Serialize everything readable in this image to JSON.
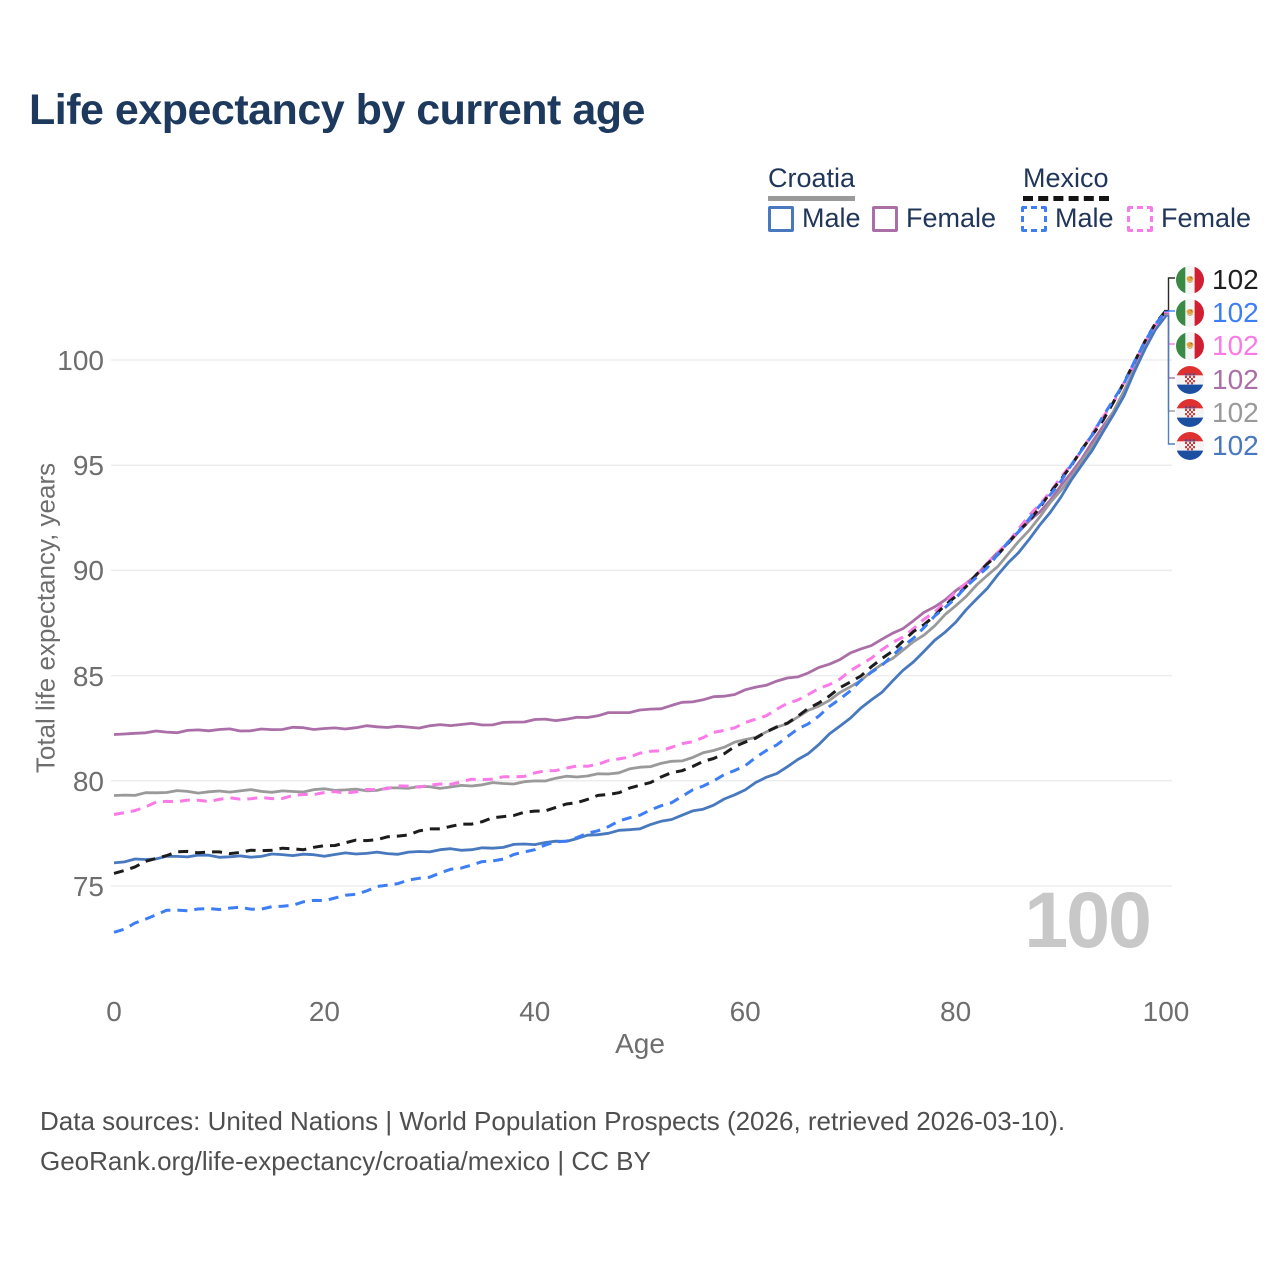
{
  "title": "Life expectancy by current age",
  "legend": {
    "groups": [
      {
        "name": "Croatia",
        "line_style": "solid",
        "underline_color": "#9a9a9a",
        "items": [
          {
            "label": "Male",
            "color": "#4878bd"
          },
          {
            "label": "Female",
            "color": "#ab6fa8"
          }
        ]
      },
      {
        "name": "Mexico",
        "line_style": "dashed",
        "underline_color": "#141414",
        "items": [
          {
            "label": "Male",
            "color": "#3d7ef5"
          },
          {
            "label": "Female",
            "color": "#fa7ae8"
          }
        ]
      }
    ]
  },
  "watermark": "100",
  "axes": {
    "x": {
      "title": "Age",
      "ticks": [
        0,
        20,
        40,
        60,
        80,
        100
      ],
      "range": [
        0,
        100
      ]
    },
    "y": {
      "title": "Total life expectancy, years",
      "ticks": [
        75,
        80,
        85,
        90,
        95,
        100
      ],
      "range": [
        72,
        103
      ],
      "grid": true
    }
  },
  "chart_data": {
    "type": "line",
    "title": "Life expectancy by current age",
    "xlabel": "Age",
    "ylabel": "Total life expectancy, years",
    "x_ages": [
      0,
      5,
      10,
      15,
      20,
      25,
      30,
      35,
      40,
      45,
      50,
      55,
      60,
      65,
      70,
      75,
      80,
      85,
      90,
      95,
      100
    ],
    "xlim": [
      0,
      100
    ],
    "ylim": [
      72,
      103
    ],
    "legend_position": "top-right",
    "series": [
      {
        "key": "croatia_female",
        "country": "Croatia",
        "sex": "Female",
        "color": "#ab6fa8",
        "dash": "solid",
        "values": [
          82.2,
          82.35,
          82.4,
          82.45,
          82.5,
          82.55,
          82.6,
          82.7,
          82.85,
          83.05,
          83.35,
          83.75,
          84.3,
          85.0,
          86.0,
          87.3,
          89.0,
          91.3,
          94.0,
          97.6,
          102.2
        ]
      },
      {
        "key": "croatia_avg",
        "country": "Croatia",
        "sex": "Both",
        "color": "#9a9a9a",
        "dash": "solid",
        "values": [
          79.3,
          79.45,
          79.5,
          79.5,
          79.55,
          79.6,
          79.7,
          79.8,
          80.0,
          80.25,
          80.6,
          81.15,
          81.95,
          83.0,
          84.5,
          86.2,
          88.3,
          90.8,
          93.8,
          97.5,
          102.15
        ]
      },
      {
        "key": "croatia_male",
        "country": "Croatia",
        "sex": "Male",
        "color": "#4878bd",
        "dash": "solid",
        "values": [
          76.1,
          76.4,
          76.4,
          76.45,
          76.5,
          76.55,
          76.65,
          76.8,
          77.0,
          77.35,
          77.8,
          78.5,
          79.6,
          81.0,
          83.0,
          85.2,
          87.6,
          90.3,
          93.5,
          97.4,
          102.1
        ]
      },
      {
        "key": "mexico_female",
        "country": "Mexico",
        "sex": "Female",
        "color": "#fa7ae8",
        "dash": "dashed",
        "values": [
          78.4,
          79.0,
          79.1,
          79.2,
          79.4,
          79.6,
          79.8,
          80.05,
          80.35,
          80.75,
          81.25,
          81.9,
          82.75,
          83.85,
          85.2,
          86.9,
          88.9,
          91.4,
          94.4,
          98.0,
          102.25
        ]
      },
      {
        "key": "mexico_avg",
        "country": "Mexico",
        "sex": "Both",
        "color": "#1c1c1c",
        "dash": "dashed",
        "values": [
          75.6,
          76.5,
          76.6,
          76.7,
          76.9,
          77.25,
          77.65,
          78.1,
          78.55,
          79.1,
          79.8,
          80.7,
          81.8,
          83.1,
          84.7,
          86.6,
          88.8,
          91.3,
          94.3,
          98.0,
          102.35
        ]
      },
      {
        "key": "mexico_male",
        "country": "Mexico",
        "sex": "Male",
        "color": "#3d7ef5",
        "dash": "dashed",
        "values": [
          72.8,
          73.8,
          73.9,
          74.0,
          74.35,
          74.9,
          75.5,
          76.1,
          76.75,
          77.5,
          78.4,
          79.5,
          80.8,
          82.4,
          84.3,
          86.4,
          88.7,
          91.3,
          94.3,
          98.05,
          102.3
        ]
      }
    ]
  },
  "end_labels": [
    {
      "flag": "mexico",
      "series": "mexico_avg",
      "value": "102",
      "color": "#1f1f1f",
      "y": 278
    },
    {
      "flag": "mexico",
      "series": "mexico_male",
      "value": "102",
      "color": "#3d7ef5",
      "y": 311
    },
    {
      "flag": "mexico",
      "series": "mexico_female",
      "value": "102",
      "color": "#fa7ae8",
      "y": 344
    },
    {
      "flag": "croatia",
      "series": "croatia_female",
      "value": "102",
      "color": "#ab6fa8",
      "y": 378
    },
    {
      "flag": "croatia",
      "series": "croatia_avg",
      "value": "102",
      "color": "#9a9a9a",
      "y": 411
    },
    {
      "flag": "croatia",
      "series": "croatia_male",
      "value": "102",
      "color": "#4878bd",
      "y": 444
    }
  ],
  "footer": {
    "line1": "Data sources: United Nations | World Population Prospects (2026, retrieved 2026-03-10).",
    "line2": "GeoRank.org/life-expectancy/croatia/mexico | CC BY"
  }
}
